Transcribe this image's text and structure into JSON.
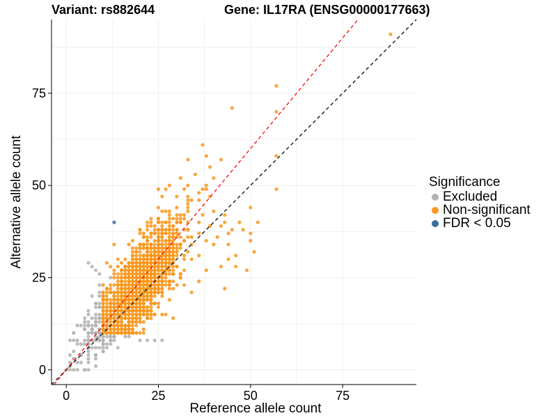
{
  "chart_data": {
    "type": "scatter",
    "title_left": "Variant: rs882644",
    "title_right": "Gene: IL17RA (ENSG00000177663)",
    "xlabel": "Reference allele count",
    "ylabel": "Alternative allele count",
    "xlim": [
      -4,
      95
    ],
    "ylim": [
      -4,
      95
    ],
    "x_ticks": [
      0,
      25,
      50,
      75
    ],
    "y_ticks": [
      0,
      25,
      50,
      75
    ],
    "grid": true,
    "legend": {
      "title": "Significance",
      "position": "right",
      "items": [
        {
          "label": "Excluded",
          "color": "#B3B3B3"
        },
        {
          "label": "Non-significant",
          "color": "#F8981D"
        },
        {
          "label": "FDR < 0.05",
          "color": "#3C6E9E"
        }
      ]
    },
    "reference_lines": [
      {
        "name": "identity",
        "slope": 1.0,
        "intercept": 0,
        "color": "#000000",
        "style": "dashed"
      },
      {
        "name": "fitted",
        "slope": 1.2,
        "intercept": 0,
        "color": "#FF0000",
        "style": "dashed"
      }
    ],
    "series": [
      {
        "name": "Excluded",
        "color": "#B3B3B3",
        "cloud": {
          "n": 170,
          "x_min": 0,
          "x_max": 25,
          "center_x": 9,
          "center_y": 9
        },
        "points": [
          [
            1,
            8
          ],
          [
            2,
            8
          ],
          [
            3,
            8
          ],
          [
            6,
            29
          ],
          [
            7,
            28
          ],
          [
            8,
            27
          ],
          [
            9,
            26
          ],
          [
            2,
            3
          ],
          [
            1,
            1
          ],
          [
            0,
            0
          ],
          [
            4,
            4
          ],
          [
            24,
            8
          ],
          [
            26,
            8
          ],
          [
            20,
            8
          ],
          [
            22,
            8
          ],
          [
            6,
            16
          ],
          [
            5,
            14
          ],
          [
            3,
            12
          ],
          [
            12,
            25
          ]
        ]
      },
      {
        "name": "Non-significant",
        "color": "#F8981D",
        "cloud": {
          "n": 1700,
          "x_min": 10,
          "x_max": 41,
          "center_x": 20,
          "center_y": 22
        },
        "points": [
          [
            88,
            91
          ],
          [
            57,
            77
          ],
          [
            57,
            70
          ],
          [
            45,
            71
          ],
          [
            57,
            58
          ],
          [
            57,
            49
          ],
          [
            50,
            35
          ],
          [
            49,
            27
          ],
          [
            48,
            38
          ],
          [
            44,
            34
          ],
          [
            43,
            22
          ],
          [
            42,
            28
          ],
          [
            41,
            36
          ],
          [
            37,
            61
          ],
          [
            42,
            57
          ],
          [
            43,
            42
          ],
          [
            39,
            55
          ],
          [
            33,
            57
          ],
          [
            31,
            52
          ],
          [
            33,
            50
          ],
          [
            34,
            46
          ],
          [
            38,
            58
          ],
          [
            43,
            40
          ],
          [
            40,
            52
          ],
          [
            39,
            39
          ],
          [
            36,
            31
          ],
          [
            44,
            37
          ],
          [
            47,
            40
          ],
          [
            50,
            44
          ],
          [
            52,
            40
          ],
          [
            50,
            37
          ],
          [
            35,
            53
          ],
          [
            28,
            50
          ],
          [
            25,
            49
          ],
          [
            30,
            47
          ],
          [
            38,
            50
          ],
          [
            32,
            49
          ],
          [
            45,
            38
          ],
          [
            46,
            31
          ],
          [
            51,
            32
          ],
          [
            38,
            35
          ],
          [
            40,
            34
          ],
          [
            42,
            39
          ],
          [
            40,
            43
          ],
          [
            39,
            47
          ],
          [
            37,
            42
          ],
          [
            36,
            46
          ],
          [
            30,
            40
          ],
          [
            44,
            30
          ],
          [
            46,
            28
          ],
          [
            38,
            27
          ],
          [
            36,
            24
          ],
          [
            34,
            21
          ],
          [
            32,
            27
          ],
          [
            30,
            28
          ],
          [
            28,
            19
          ]
        ]
      },
      {
        "name": "FDR < 0.05",
        "color": "#3C6E9E",
        "points": [
          [
            13,
            40
          ]
        ]
      }
    ]
  }
}
